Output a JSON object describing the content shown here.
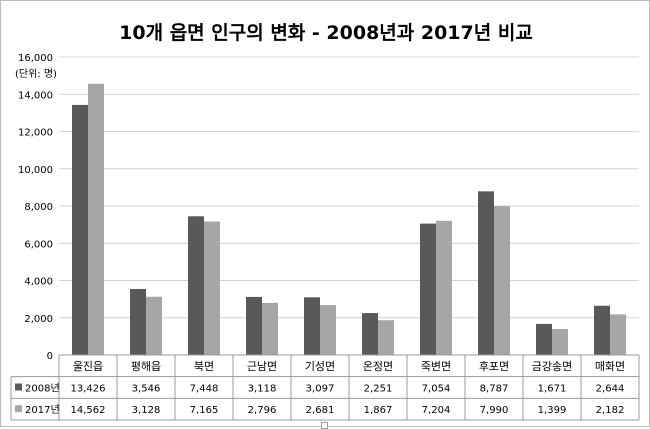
{
  "chart_data": {
    "type": "bar",
    "title": "10개 읍면 인구의 변화 - 2008년과 2017년 비교",
    "unit_label": "(단위: 명)",
    "categories": [
      "울진읍",
      "평해읍",
      "북면",
      "근남면",
      "기성면",
      "온정면",
      "죽변면",
      "후포면",
      "금강송면",
      "매화면"
    ],
    "series": [
      {
        "name": "2008년",
        "values": [
          13426,
          3546,
          7448,
          3118,
          3097,
          2251,
          7054,
          8787,
          1671,
          2644
        ],
        "labels": [
          "13,426",
          "3,546",
          "7,448",
          "3,118",
          "3,097",
          "2,251",
          "7,054",
          "8,787",
          "1,671",
          "2,644"
        ],
        "color": "#595959"
      },
      {
        "name": "2017년",
        "values": [
          14562,
          3128,
          7165,
          2796,
          2681,
          1867,
          7204,
          7990,
          1399,
          2182
        ],
        "labels": [
          "14,562",
          "3,128",
          "7,165",
          "2,796",
          "2,681",
          "1,867",
          "7,204",
          "7,990",
          "1,399",
          "2,182"
        ],
        "color": "#a6a6a6"
      }
    ],
    "ylim": [
      0,
      16000
    ],
    "yticks": [
      0,
      2000,
      4000,
      6000,
      8000,
      10000,
      12000,
      14000,
      16000
    ],
    "ytick_labels": [
      "0",
      "2,000",
      "4,000",
      "6,000",
      "8,000",
      "10,000",
      "12,000",
      "14,000",
      "16,000"
    ],
    "grid": true,
    "legend": "data-table-left"
  }
}
